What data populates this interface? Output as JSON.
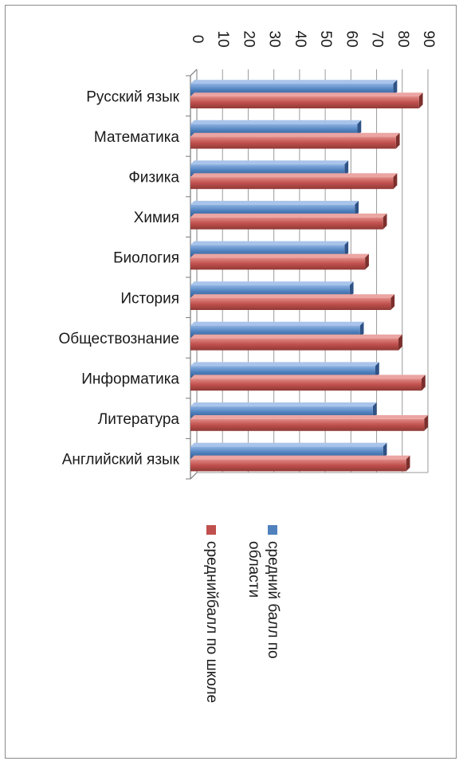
{
  "chart_data": {
    "type": "bar",
    "orientation": "horizontal",
    "categories": [
      "Русский язык",
      "Математика",
      "Физика",
      "Химия",
      "Биология",
      "История",
      "Обществознание",
      "Информатика",
      "Литература",
      "Английский язык"
    ],
    "series": [
      {
        "name": "средний балл по области",
        "color": "#4f81bd",
        "values": [
          79,
          65,
          60,
          64,
          60,
          62,
          66,
          72,
          71,
          75
        ]
      },
      {
        "name": "среднийбалл по школе",
        "color": "#c0504d",
        "values": [
          89,
          80,
          79,
          75,
          68,
          78,
          81,
          90,
          91,
          84
        ]
      }
    ],
    "xlim": [
      0,
      90
    ],
    "ticks": [
      "0",
      "10",
      "20",
      "30",
      "40",
      "50",
      "60",
      "70",
      "80",
      "90"
    ],
    "grid": true,
    "legend_position": "bottom",
    "three_d": true
  }
}
